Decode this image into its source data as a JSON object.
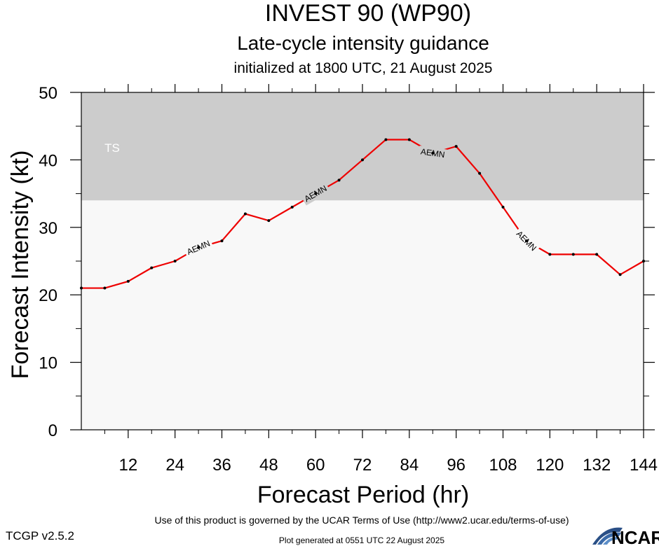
{
  "title": "INVEST 90 (WP90)",
  "subtitle": "Late-cycle intensity guidance",
  "init_line": "initialized at 1800 UTC, 21 August 2025",
  "footer": {
    "terms": "Use of this product is governed by the UCAR Terms of Use (http://www2.ucar.edu/terms-of-use)",
    "generated": "Plot generated at 0551 UTC   22 August 2025",
    "version": "TCGP v2.5.2",
    "logo_text": "NCAR"
  },
  "colors": {
    "series": "#ee0000",
    "ts_band": "#cccccc",
    "plot_bg": "#f8f8f8"
  },
  "chart_data": {
    "type": "line",
    "xlabel": "Forecast Period (hr)",
    "ylabel": "Forecast Intensity (kt)",
    "xlim": [
      0,
      144
    ],
    "ylim": [
      0,
      50
    ],
    "xticks": [
      12,
      24,
      36,
      48,
      60,
      72,
      84,
      96,
      108,
      120,
      132,
      144
    ],
    "yticks": [
      0,
      10,
      20,
      30,
      40,
      50
    ],
    "bands": [
      {
        "label": "TS",
        "from": 34,
        "to": 50,
        "color": "#cccccc"
      }
    ],
    "series": [
      {
        "name": "AEMN",
        "color": "#ee0000",
        "x": [
          0,
          6,
          12,
          18,
          24,
          30,
          36,
          42,
          48,
          54,
          60,
          66,
          72,
          78,
          84,
          90,
          96,
          102,
          108,
          114,
          120,
          126,
          132,
          138,
          144
        ],
        "y": [
          21,
          21,
          22,
          24,
          25,
          27,
          28,
          32,
          31,
          33,
          35,
          37,
          40,
          43,
          43,
          41,
          42,
          38,
          33,
          28,
          26,
          26,
          26,
          23,
          25
        ],
        "label_x": [
          30,
          60,
          90,
          114
        ]
      }
    ]
  }
}
